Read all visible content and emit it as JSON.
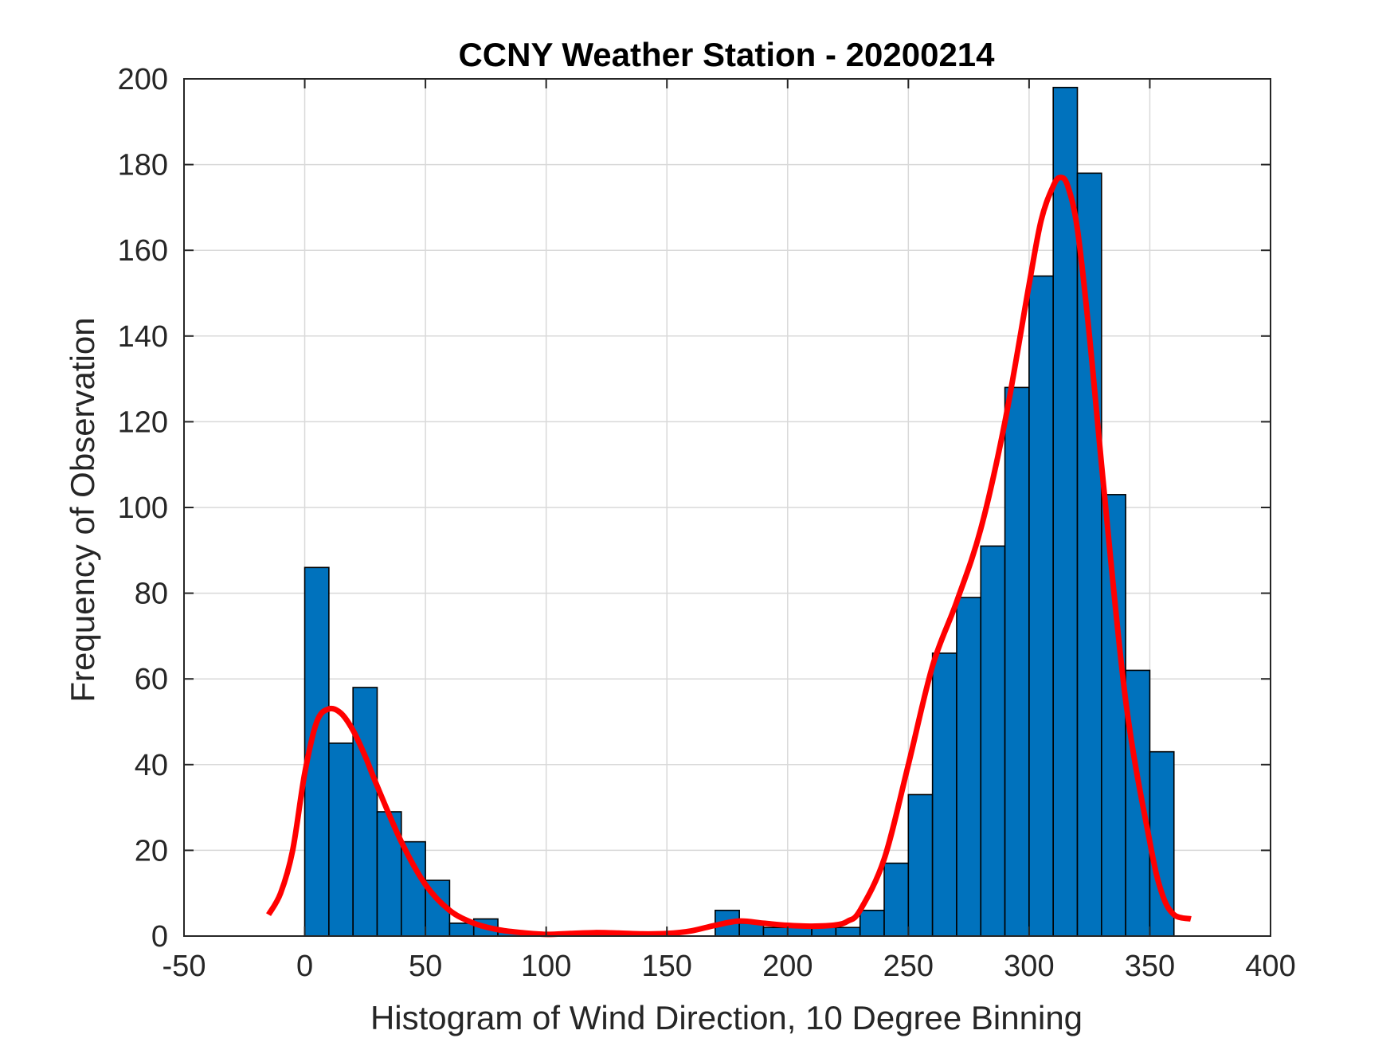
{
  "chart_data": {
    "type": "bar",
    "title": "CCNY Weather Station - 20200214",
    "xlabel": "Histogram of Wind Direction, 10 Degree Binning",
    "ylabel": "Frequency of Observation",
    "xlim": [
      -50,
      400
    ],
    "ylim": [
      0,
      200
    ],
    "xticks": [
      -50,
      0,
      50,
      100,
      150,
      200,
      250,
      300,
      350,
      400
    ],
    "yticks": [
      0,
      20,
      40,
      60,
      80,
      100,
      120,
      140,
      160,
      180,
      200
    ],
    "grid": true,
    "bin_width": 10,
    "bin_edges_start": [
      0,
      10,
      20,
      30,
      40,
      50,
      60,
      70,
      80,
      90,
      100,
      110,
      120,
      130,
      140,
      150,
      160,
      170,
      180,
      190,
      200,
      210,
      220,
      230,
      240,
      250,
      260,
      270,
      280,
      290,
      300,
      310,
      320,
      330,
      340,
      350
    ],
    "values": [
      86,
      45,
      58,
      29,
      22,
      13,
      3,
      4,
      1,
      0,
      0,
      0,
      0,
      0,
      0,
      0,
      0,
      6,
      3,
      2,
      2,
      2,
      2,
      6,
      17,
      33,
      66,
      79,
      91,
      128,
      154,
      198,
      178,
      103,
      62,
      43
    ],
    "bar_color": "#0072BD",
    "curve": {
      "color": "#FF0000",
      "x": [
        -15,
        -10,
        -5,
        0,
        5,
        10,
        15,
        20,
        25,
        30,
        40,
        50,
        60,
        70,
        80,
        90,
        100,
        110,
        120,
        130,
        140,
        150,
        160,
        170,
        180,
        190,
        200,
        210,
        220,
        225,
        230,
        240,
        250,
        260,
        270,
        280,
        290,
        300,
        305,
        310,
        313,
        316,
        320,
        325,
        330,
        340,
        350,
        355,
        360,
        367
      ],
      "y": [
        5,
        10,
        20,
        38,
        50,
        53,
        52,
        48,
        42,
        35,
        22,
        12,
        6,
        3,
        1.5,
        0.8,
        0.4,
        0.6,
        0.8,
        0.7,
        0.5,
        0.6,
        1.2,
        2.5,
        3.5,
        3,
        2.5,
        2.3,
        2.6,
        3.5,
        6,
        18,
        40,
        63,
        78,
        95,
        120,
        152,
        167,
        175,
        177,
        175,
        165,
        140,
        110,
        55,
        22,
        10,
        5,
        4
      ]
    }
  }
}
